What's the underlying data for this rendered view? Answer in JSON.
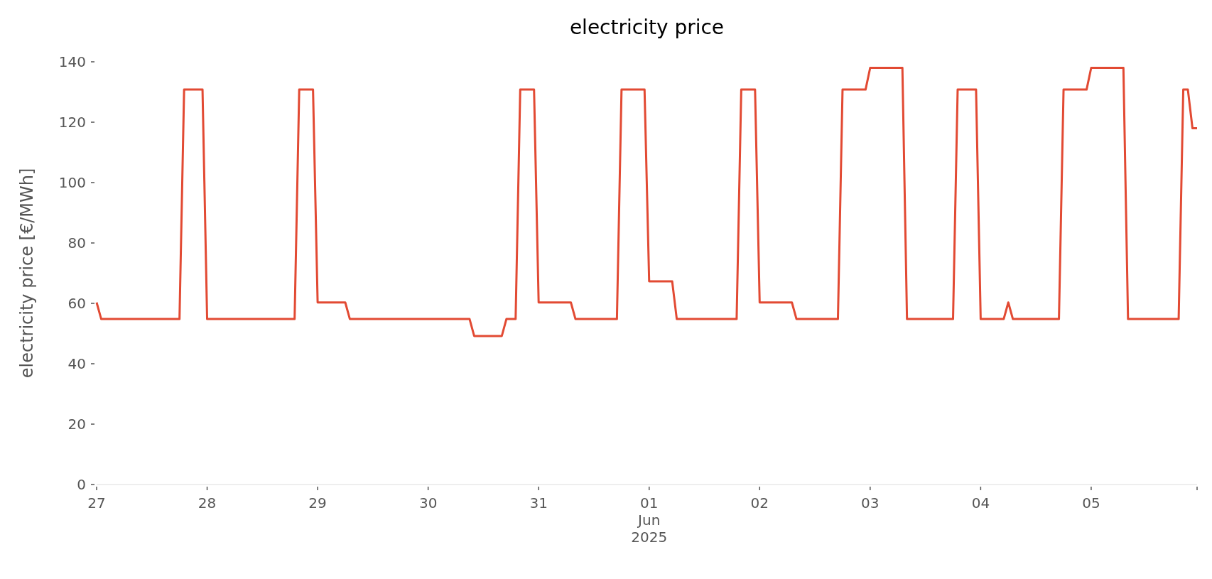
{
  "chart_data": {
    "type": "line",
    "title": "electricity price",
    "ylabel": "electricity price [€/MWh]",
    "x": [
      "2025-05-27T00:00",
      "2025-05-27T01:00",
      "2025-05-27T18:00",
      "2025-05-27T19:00",
      "2025-05-27T23:00",
      "2025-05-28T00:00",
      "2025-05-28T19:00",
      "2025-05-28T20:00",
      "2025-05-28T23:00",
      "2025-05-29T00:00",
      "2025-05-29T06:00",
      "2025-05-29T07:00",
      "2025-05-30T09:00",
      "2025-05-30T10:00",
      "2025-05-30T16:00",
      "2025-05-30T17:00",
      "2025-05-30T19:00",
      "2025-05-30T20:00",
      "2025-05-30T23:00",
      "2025-05-31T00:00",
      "2025-05-31T07:00",
      "2025-05-31T08:00",
      "2025-05-31T17:00",
      "2025-05-31T18:00",
      "2025-05-31T23:00",
      "2025-06-01T00:00",
      "2025-06-01T05:00",
      "2025-06-01T06:00",
      "2025-06-01T19:00",
      "2025-06-01T20:00",
      "2025-06-01T23:00",
      "2025-06-02T00:00",
      "2025-06-02T07:00",
      "2025-06-02T08:00",
      "2025-06-02T17:00",
      "2025-06-02T18:00",
      "2025-06-02T23:00",
      "2025-06-03T00:00",
      "2025-06-03T07:00",
      "2025-06-03T08:00",
      "2025-06-03T18:00",
      "2025-06-03T19:00",
      "2025-06-03T23:00",
      "2025-06-04T00:00",
      "2025-06-04T05:00",
      "2025-06-04T06:00",
      "2025-06-04T07:00",
      "2025-06-04T17:00",
      "2025-06-04T18:00",
      "2025-06-04T23:00",
      "2025-06-05T00:00",
      "2025-06-05T07:00",
      "2025-06-05T08:00",
      "2025-06-05T19:00",
      "2025-06-05T20:00",
      "2025-06-05T21:00",
      "2025-06-05T22:00",
      "2025-06-05T23:00"
    ],
    "series": [
      {
        "color": "#e24a33",
        "values": [
          60.3,
          54.8,
          54.8,
          130.8,
          130.8,
          54.8,
          54.8,
          130.8,
          130.8,
          60.3,
          60.3,
          54.8,
          54.8,
          49.2,
          49.2,
          54.8,
          54.8,
          130.8,
          130.8,
          60.3,
          60.3,
          54.8,
          54.8,
          130.8,
          130.8,
          67.3,
          67.3,
          54.8,
          54.8,
          130.8,
          130.8,
          60.3,
          60.3,
          54.8,
          54.8,
          130.8,
          130.8,
          138,
          138,
          54.8,
          54.8,
          130.8,
          130.8,
          54.8,
          54.8,
          60.3,
          54.8,
          54.8,
          130.8,
          130.8,
          138,
          138,
          54.8,
          54.8,
          130.8,
          130.8,
          118,
          118
        ]
      }
    ],
    "xticks": [
      {
        "value": "2025-05-27T00:00",
        "label": "27"
      },
      {
        "value": "2025-05-28T00:00",
        "label": "28"
      },
      {
        "value": "2025-05-29T00:00",
        "label": "29"
      },
      {
        "value": "2025-05-30T00:00",
        "label": "30"
      },
      {
        "value": "2025-05-31T00:00",
        "label": "31"
      },
      {
        "value": "2025-06-01T00:00",
        "label": "01\nJun\n2025"
      },
      {
        "value": "2025-06-02T00:00",
        "label": "02"
      },
      {
        "value": "2025-06-03T00:00",
        "label": "03"
      },
      {
        "value": "2025-06-04T00:00",
        "label": "04"
      },
      {
        "value": "2025-06-05T00:00",
        "label": "05"
      },
      {
        "value": "2025-06-05T23:00",
        "label": null
      }
    ],
    "xlim": [
      "2025-05-27T00:00",
      "2025-06-05T23:00"
    ],
    "ylim": [
      0,
      140
    ],
    "yticks": [
      0,
      20,
      40,
      60,
      80,
      100,
      120,
      140
    ]
  }
}
